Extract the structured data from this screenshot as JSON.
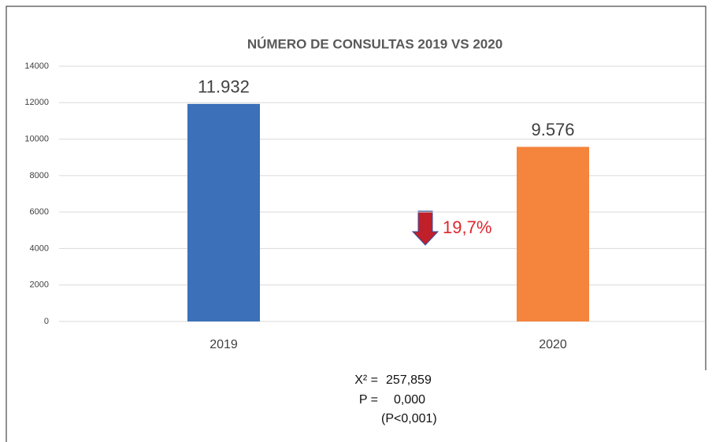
{
  "chart_data": {
    "type": "bar",
    "title": "NÚMERO DE CONSULTAS 2019 VS 2020",
    "categories": [
      "2019",
      "2020"
    ],
    "values": [
      11932,
      9576
    ],
    "value_labels": [
      "11.932",
      "9.576"
    ],
    "colors": [
      "#3c70b9",
      "#f5843c"
    ],
    "ylim": [
      0,
      14000
    ],
    "yticks": [
      0,
      2000,
      4000,
      6000,
      8000,
      10000,
      12000,
      14000
    ],
    "grid": true,
    "annotation": "19,7%",
    "stats": [
      [
        "X² =",
        "257,859"
      ],
      [
        "P =",
        "0,000"
      ]
    ],
    "note": "(P<0,001)"
  }
}
